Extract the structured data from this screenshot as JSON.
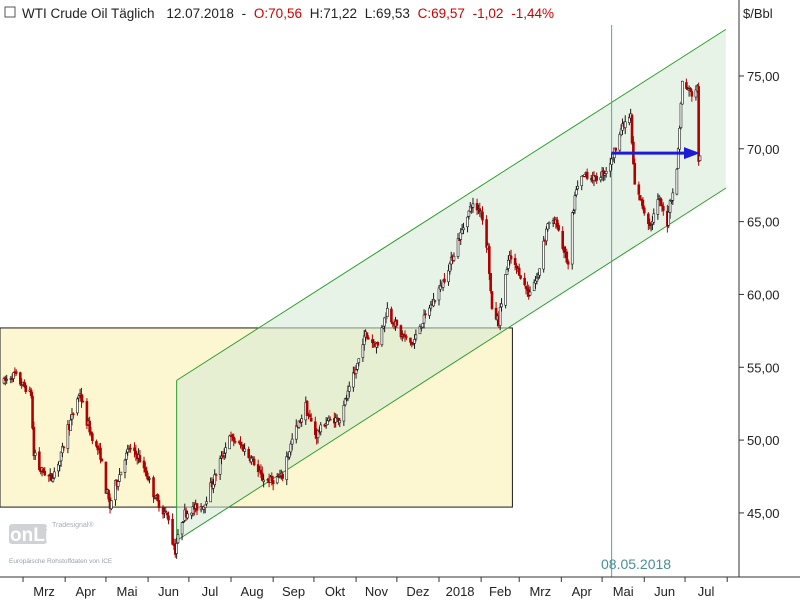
{
  "header": {
    "instrument": "WTI Crude Oil Täglich",
    "date": "12.07.2018",
    "open": "O:70,56",
    "high": "H:71,22",
    "low": "L:69,53",
    "close": "C:69,57",
    "change": "-1,02",
    "change_pct": "-1,44%"
  },
  "watermark": {
    "brand": "onLine",
    "sub": "Tradesignal®",
    "source": "Europäische Rohstoffdaten von ICE"
  },
  "vline_label": "08.05.2018",
  "colors": {
    "up": "#1a1a1a",
    "down": "#b00000",
    "channel": "#2e9d2e",
    "channel_fill": "#d4ead4",
    "box_fill": "#fbf6c8",
    "arrow": "#1c1cd6",
    "vline": "#5a9fa8",
    "red_text": "#d00000"
  },
  "chart_data": {
    "type": "candlestick",
    "y_unit": "$/Bbl",
    "ylim": [
      40.6,
      78.5
    ],
    "yticks": [
      "45,00",
      "50,00",
      "55,00",
      "60,00",
      "65,00",
      "70,00",
      "75,00"
    ],
    "x_ticks": [
      "Mrz",
      "Apr",
      "Mai",
      "Jun",
      "Jul",
      "Aug",
      "Sep",
      "Okt",
      "Nov",
      "Dez",
      "2018",
      "Feb",
      "Mrz",
      "Apr",
      "Mai",
      "Jun",
      "Jul"
    ],
    "grid": false,
    "price_path": [
      [
        "2017-02-15",
        54.0
      ],
      [
        "2017-02-23",
        54.5
      ],
      [
        "2017-03-01",
        53.8
      ],
      [
        "2017-03-07",
        53.2
      ],
      [
        "2017-03-09",
        49.5
      ],
      [
        "2017-03-14",
        48.0
      ],
      [
        "2017-03-22",
        47.4
      ],
      [
        "2017-03-28",
        48.5
      ],
      [
        "2017-04-03",
        50.6
      ],
      [
        "2017-04-12",
        53.2
      ],
      [
        "2017-04-20",
        50.5
      ],
      [
        "2017-04-27",
        49.0
      ],
      [
        "2017-05-04",
        45.5
      ],
      [
        "2017-05-10",
        47.3
      ],
      [
        "2017-05-18",
        49.4
      ],
      [
        "2017-05-25",
        48.9
      ],
      [
        "2017-06-01",
        47.5
      ],
      [
        "2017-06-08",
        45.8
      ],
      [
        "2017-06-16",
        44.7
      ],
      [
        "2017-06-21",
        42.5
      ],
      [
        "2017-06-28",
        44.9
      ],
      [
        "2017-07-05",
        45.3
      ],
      [
        "2017-07-12",
        45.5
      ],
      [
        "2017-07-19",
        47.1
      ],
      [
        "2017-07-31",
        50.2
      ],
      [
        "2017-08-09",
        49.6
      ],
      [
        "2017-08-18",
        48.5
      ],
      [
        "2017-08-24",
        47.4
      ],
      [
        "2017-08-31",
        47.2
      ],
      [
        "2017-09-08",
        47.5
      ],
      [
        "2017-09-15",
        49.9
      ],
      [
        "2017-09-25",
        52.2
      ],
      [
        "2017-10-03",
        50.4
      ],
      [
        "2017-10-11",
        51.3
      ],
      [
        "2017-10-20",
        51.5
      ],
      [
        "2017-10-31",
        54.4
      ],
      [
        "2017-11-08",
        57.2
      ],
      [
        "2017-11-17",
        56.5
      ],
      [
        "2017-11-24",
        58.9
      ],
      [
        "2017-12-05",
        57.2
      ],
      [
        "2017-12-13",
        56.6
      ],
      [
        "2017-12-20",
        58.1
      ],
      [
        "2018-01-02",
        60.4
      ],
      [
        "2018-01-08",
        61.7
      ],
      [
        "2018-01-16",
        63.8
      ],
      [
        "2018-01-25",
        66.1
      ],
      [
        "2018-02-01",
        65.8
      ],
      [
        "2018-02-06",
        63.4
      ],
      [
        "2018-02-09",
        59.2
      ],
      [
        "2018-02-14",
        58.2
      ],
      [
        "2018-02-22",
        62.5
      ],
      [
        "2018-03-01",
        61.6
      ],
      [
        "2018-03-08",
        60.1
      ],
      [
        "2018-03-15",
        61.2
      ],
      [
        "2018-03-22",
        64.8
      ],
      [
        "2018-03-29",
        64.9
      ],
      [
        "2018-04-06",
        62.1
      ],
      [
        "2018-04-12",
        67.1
      ],
      [
        "2018-04-19",
        68.3
      ],
      [
        "2018-04-26",
        67.9
      ],
      [
        "2018-05-03",
        68.4
      ],
      [
        "2018-05-08",
        69.1
      ],
      [
        "2018-05-15",
        71.3
      ],
      [
        "2018-05-22",
        72.2
      ],
      [
        "2018-05-25",
        67.9
      ],
      [
        "2018-06-01",
        65.8
      ],
      [
        "2018-06-06",
        64.8
      ],
      [
        "2018-06-12",
        66.4
      ],
      [
        "2018-06-18",
        65.1
      ],
      [
        "2018-06-20",
        66.2
      ],
      [
        "2018-06-25",
        68.1
      ],
      [
        "2018-06-29",
        74.1
      ],
      [
        "2018-07-03",
        74.1
      ],
      [
        "2018-07-06",
        73.8
      ],
      [
        "2018-07-10",
        74.1
      ],
      [
        "2018-07-11",
        70.4
      ],
      [
        "2018-07-12",
        69.6
      ]
    ],
    "candle_start": "2017-02-15",
    "candle_end": "2018-07-12",
    "annotations": {
      "channel": {
        "lower_from": [
          "2017-06-22",
          43.1
        ],
        "lower_to": [
          "2018-07-31",
          67.3
        ],
        "upper_from": [
          "2017-06-22",
          54.1
        ],
        "upper_to": [
          "2018-07-31",
          78.2
        ]
      },
      "range_box": {
        "from": "2017-02-15",
        "to": "2018-02-24",
        "top": 57.7,
        "bottom": 45.4
      },
      "vline_date": "2018-05-08",
      "arrow": {
        "from": [
          "2018-05-08",
          69.7
        ],
        "to": [
          "2018-07-12",
          69.7
        ]
      }
    }
  }
}
